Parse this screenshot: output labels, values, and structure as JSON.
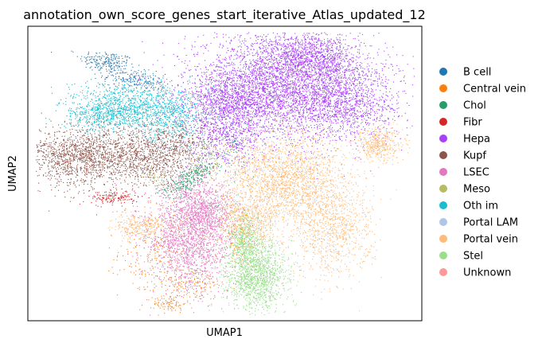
{
  "chart_data": {
    "type": "scatter",
    "title": "annotation_own_score_genes_start_iterative_Atlas_updated_12",
    "xlabel": "UMAP1",
    "ylabel": "UMAP2",
    "axis_ticks": false,
    "grid": false,
    "legend_position": "right",
    "xlim": [
      0,
      1
    ],
    "ylim": [
      0,
      1
    ],
    "series": [
      {
        "name": "B cell",
        "color": "#1f77b4",
        "n": 420,
        "blobs": [
          [
            0.2,
            0.88,
            0.035,
            0.02,
            0.5,
            -0.3
          ],
          [
            0.27,
            0.82,
            0.04,
            0.018,
            0.5,
            -0.4
          ]
        ]
      },
      {
        "name": "Central vein",
        "color": "#ff7f0e",
        "n": 650,
        "blobs": [
          [
            0.33,
            0.24,
            0.05,
            0.08,
            1,
            0
          ],
          [
            0.41,
            0.13,
            0.05,
            0.03,
            0.6,
            0
          ],
          [
            0.36,
            0.06,
            0.02,
            0.015,
            0.3,
            0
          ],
          [
            0.53,
            0.3,
            0.03,
            0.06,
            0.5,
            0
          ]
        ]
      },
      {
        "name": "Chol",
        "color": "#279e68",
        "n": 430,
        "blobs": [
          [
            0.39,
            0.47,
            0.025,
            0.025,
            0.6,
            0.5
          ],
          [
            0.44,
            0.51,
            0.02,
            0.02,
            0.4,
            0.5
          ],
          [
            0.5,
            0.58,
            0.04,
            0.08,
            0.3,
            0
          ]
        ]
      },
      {
        "name": "Fibr",
        "color": "#d62728",
        "n": 150,
        "blobs": [
          [
            0.22,
            0.42,
            0.03,
            0.012,
            1,
            0
          ]
        ]
      },
      {
        "name": "Hepa",
        "color": "#aa40fc",
        "n": 7200,
        "blobs": [
          [
            0.62,
            0.8,
            0.11,
            0.09,
            3,
            0
          ],
          [
            0.79,
            0.75,
            0.08,
            0.07,
            1.5,
            0
          ],
          [
            0.72,
            0.9,
            0.06,
            0.04,
            1,
            0
          ],
          [
            0.52,
            0.74,
            0.07,
            0.05,
            1,
            0
          ],
          [
            0.5,
            0.62,
            0.05,
            0.05,
            0.5,
            0
          ]
        ]
      },
      {
        "name": "Kupf",
        "color": "#8c564b",
        "n": 2600,
        "blobs": [
          [
            0.14,
            0.56,
            0.08,
            0.05,
            2,
            0
          ],
          [
            0.3,
            0.56,
            0.06,
            0.05,
            1,
            0
          ],
          [
            0.38,
            0.6,
            0.04,
            0.04,
            0.4,
            0
          ]
        ]
      },
      {
        "name": "LSEC",
        "color": "#e377c2",
        "n": 2400,
        "blobs": [
          [
            0.41,
            0.28,
            0.055,
            0.09,
            2,
            0
          ],
          [
            0.45,
            0.38,
            0.04,
            0.05,
            0.8,
            0
          ]
        ]
      },
      {
        "name": "Meso",
        "color": "#b5bd61",
        "n": 90,
        "blobs": [
          [
            0.33,
            0.48,
            0.02,
            0.02,
            1,
            0
          ],
          [
            0.47,
            0.55,
            0.03,
            0.03,
            1,
            0
          ]
        ]
      },
      {
        "name": "Oth im",
        "color": "#17becf",
        "n": 1700,
        "blobs": [
          [
            0.26,
            0.73,
            0.08,
            0.04,
            2,
            0
          ],
          [
            0.19,
            0.7,
            0.04,
            0.025,
            0.6,
            0
          ],
          [
            0.37,
            0.69,
            0.04,
            0.04,
            0.6,
            0
          ]
        ]
      },
      {
        "name": "Portal LAM",
        "color": "#aec7e8",
        "n": 40,
        "blobs": [
          [
            0.3,
            0.63,
            0.02,
            0.02,
            1,
            0
          ]
        ]
      },
      {
        "name": "Portal vein",
        "color": "#ffbb78",
        "n": 4200,
        "blobs": [
          [
            0.65,
            0.48,
            0.08,
            0.08,
            2.5,
            0
          ],
          [
            0.77,
            0.3,
            0.05,
            0.08,
            1,
            0
          ],
          [
            0.89,
            0.6,
            0.03,
            0.03,
            0.5,
            0
          ],
          [
            0.56,
            0.34,
            0.04,
            0.05,
            0.6,
            0
          ],
          [
            0.28,
            0.32,
            0.03,
            0.02,
            0.3,
            0
          ]
        ]
      },
      {
        "name": "Stel",
        "color": "#98df8a",
        "n": 1800,
        "blobs": [
          [
            0.58,
            0.16,
            0.04,
            0.06,
            2,
            0
          ],
          [
            0.55,
            0.27,
            0.02,
            0.05,
            0.6,
            0
          ]
        ]
      },
      {
        "name": "Unknown",
        "color": "#ff9896",
        "n": 12,
        "blobs": [
          [
            0.5,
            0.45,
            0.08,
            0.08,
            1,
            0
          ]
        ]
      }
    ]
  }
}
